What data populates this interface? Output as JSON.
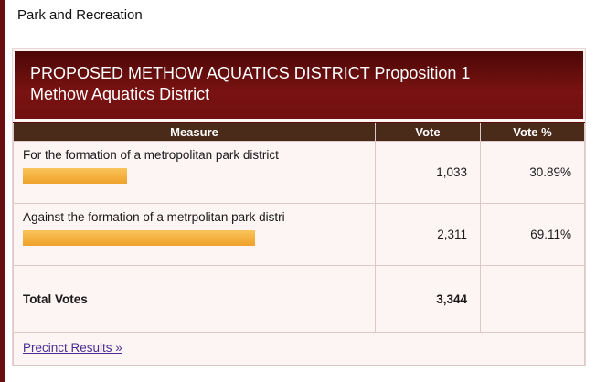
{
  "page": {
    "title": "Park and Recreation"
  },
  "contest": {
    "title_line1": "PROPOSED METHOW AQUATICS DISTRICT Proposition 1",
    "title_line2": "Methow Aquatics District"
  },
  "table": {
    "headers": [
      "Measure",
      "Vote",
      "Vote %"
    ],
    "rows": [
      {
        "measure": "For the formation of a metropolitan park district",
        "vote": "1,033",
        "pct_label": "30.89%",
        "pct_value": 30.89
      },
      {
        "measure": "Against the formation of a metrpolitan park distri",
        "vote": "2,311",
        "pct_label": "69.11%",
        "pct_value": 69.11
      }
    ],
    "total": {
      "label": "Total Votes",
      "vote": "3,344"
    }
  },
  "footer": {
    "precinct_link_label": "Precinct Results »"
  },
  "colors": {
    "maroon_stripe": "#6b0e12",
    "contest_header_bg": "#701010",
    "table_header_bg": "#4a2a19",
    "panel_bg": "#fdf4f4",
    "bar_orange_top": "#f9c45a",
    "bar_orange_bottom": "#efa22e",
    "link_purple": "#4c2c92",
    "cell_border": "#ddc8c8"
  },
  "chart_data": {
    "type": "bar",
    "title": "PROPOSED METHOW AQUATICS DISTRICT Proposition 1 — Methow Aquatics District",
    "categories": [
      "For the formation of a metropolitan park district",
      "Against the formation of a metrpolitan park distri"
    ],
    "values": [
      1033,
      2311
    ],
    "percentages": [
      30.89,
      69.11
    ],
    "total_votes": 3344,
    "xlabel": "",
    "ylabel": "Vote",
    "legend": "none",
    "orientation": "horizontal"
  }
}
